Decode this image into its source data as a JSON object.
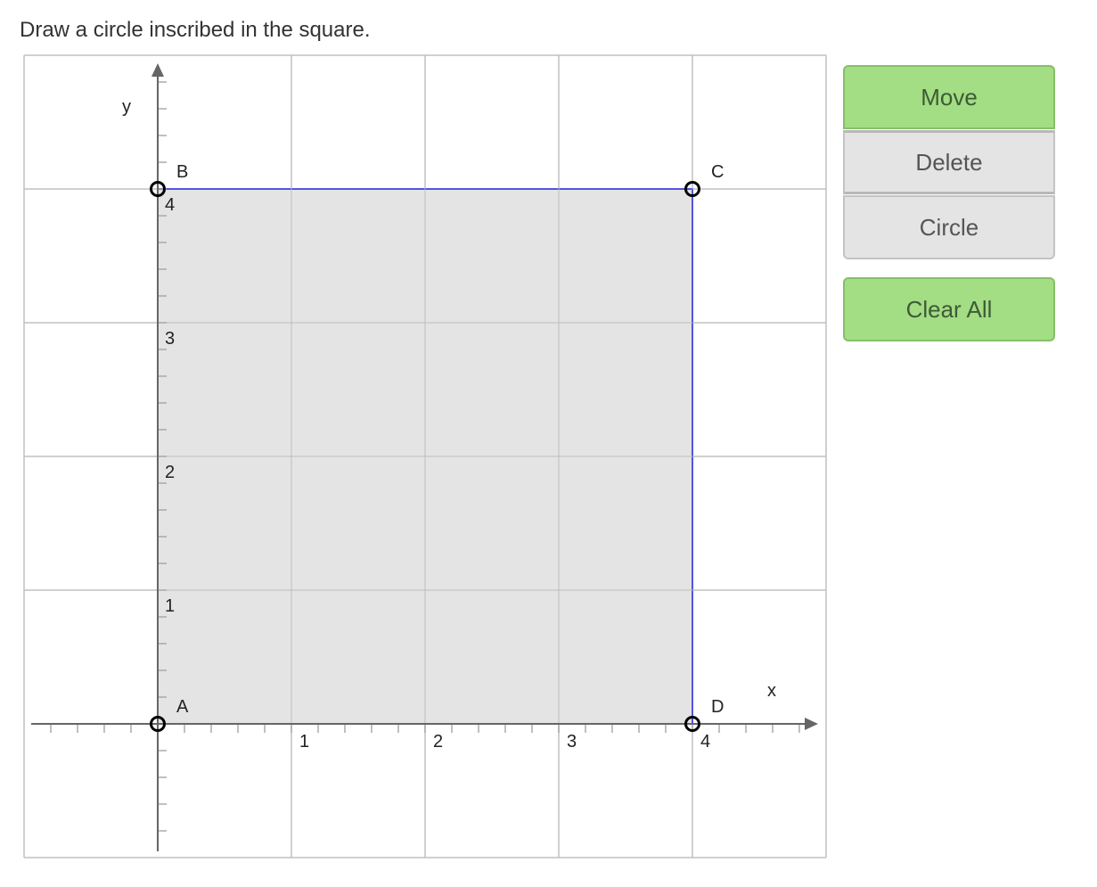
{
  "prompt": "Draw a circle inscribed in the square.",
  "toolbar": {
    "move": "Move",
    "delete": "Delete",
    "circle": "Circle",
    "clear_all": "Clear All",
    "active_tool": "Move"
  },
  "colors": {
    "active": "#a3dd84",
    "inactive": "#e4e4e4",
    "polygon_stroke": "#0000ff",
    "polygon_fill": "#e4e4e4"
  },
  "graph": {
    "x_range": [
      -1,
      5
    ],
    "y_range": [
      -1,
      5
    ],
    "grid_step": 1,
    "minor_step": 0.2,
    "x_label": "x",
    "y_label": "y",
    "x_ticks": [
      "1",
      "2",
      "3",
      "4"
    ],
    "y_ticks": [
      "1",
      "2",
      "3",
      "4"
    ],
    "points": [
      {
        "label": "A",
        "x": 0,
        "y": 0
      },
      {
        "label": "B",
        "x": 0,
        "y": 4
      },
      {
        "label": "C",
        "x": 4,
        "y": 4
      },
      {
        "label": "D",
        "x": 4,
        "y": 0
      }
    ]
  }
}
